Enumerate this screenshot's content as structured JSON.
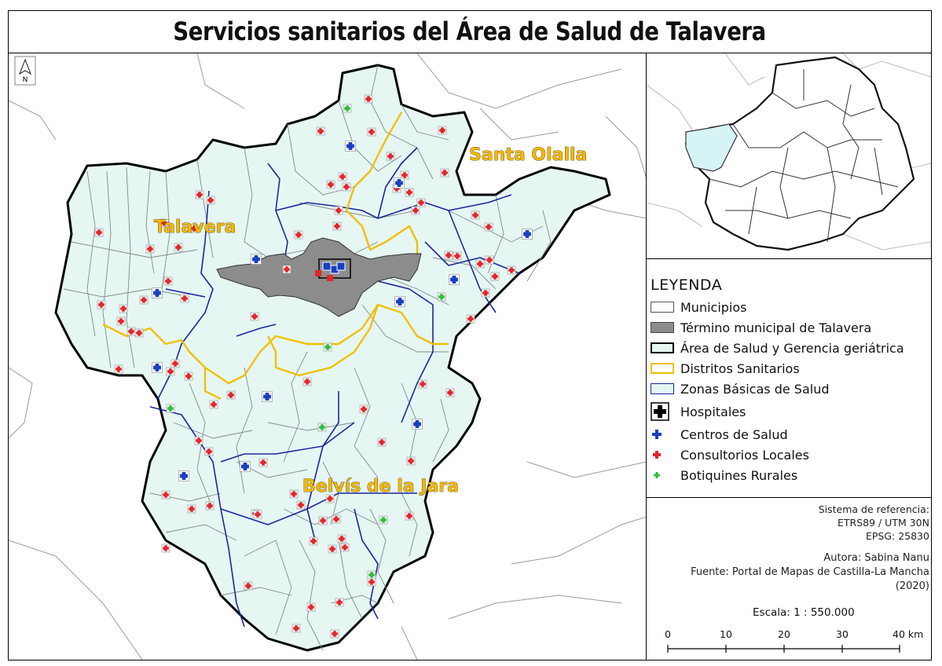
{
  "title": "Servicios sanitarios del Área de Salud de Talavera",
  "north_arrow": "N",
  "districts": {
    "talavera": "Talavera",
    "santa_olalla": "Santa Olalla",
    "belvis": "Belvís de la Jara"
  },
  "legend": {
    "title": "LEYENDA",
    "items": [
      {
        "label": "Municipios",
        "symbol": "municipios-swatch"
      },
      {
        "label": "Término municipal de Talavera",
        "symbol": "termino-swatch"
      },
      {
        "label": "Área de Salud y Gerencia geriátrica",
        "symbol": "area-swatch"
      },
      {
        "label": "Distritos Sanitarios",
        "symbol": "distritos-swatch"
      },
      {
        "label": "Zonas Básicas de Salud",
        "symbol": "zonas-swatch"
      },
      {
        "label": "Hospitales",
        "symbol": "hospital-icon"
      },
      {
        "label": "Centros de Salud",
        "symbol": "centro-salud-icon"
      },
      {
        "label": "Consultorios Locales",
        "symbol": "consultorio-icon"
      },
      {
        "label": "Botiquines Rurales",
        "symbol": "botiquin-icon"
      }
    ]
  },
  "reference": {
    "line1": "Sistema de referencia:",
    "line2": "ETRS89 / UTM 30N",
    "line3": "EPSG: 25830"
  },
  "credits": {
    "author": "Autora: Sabina Nanu",
    "source": "Fuente: Portal de Mapas de Castilla-La Mancha",
    "year": "(2020)"
  },
  "scale": {
    "label": "Escala: 1 : 550.000",
    "ticks": [
      "0",
      "10",
      "20",
      "30",
      "40 km"
    ]
  },
  "colors": {
    "area_fill": "#e6f6f3",
    "talavera_fill": "#8c8c8c",
    "district_line": "#f0c000",
    "zone_line": "#1a2a9c",
    "consultorio": "#e0262b",
    "centro": "#1a3fbf",
    "botiquin": "#2fbf3a",
    "inset_highlight": "#d6f3f6"
  }
}
